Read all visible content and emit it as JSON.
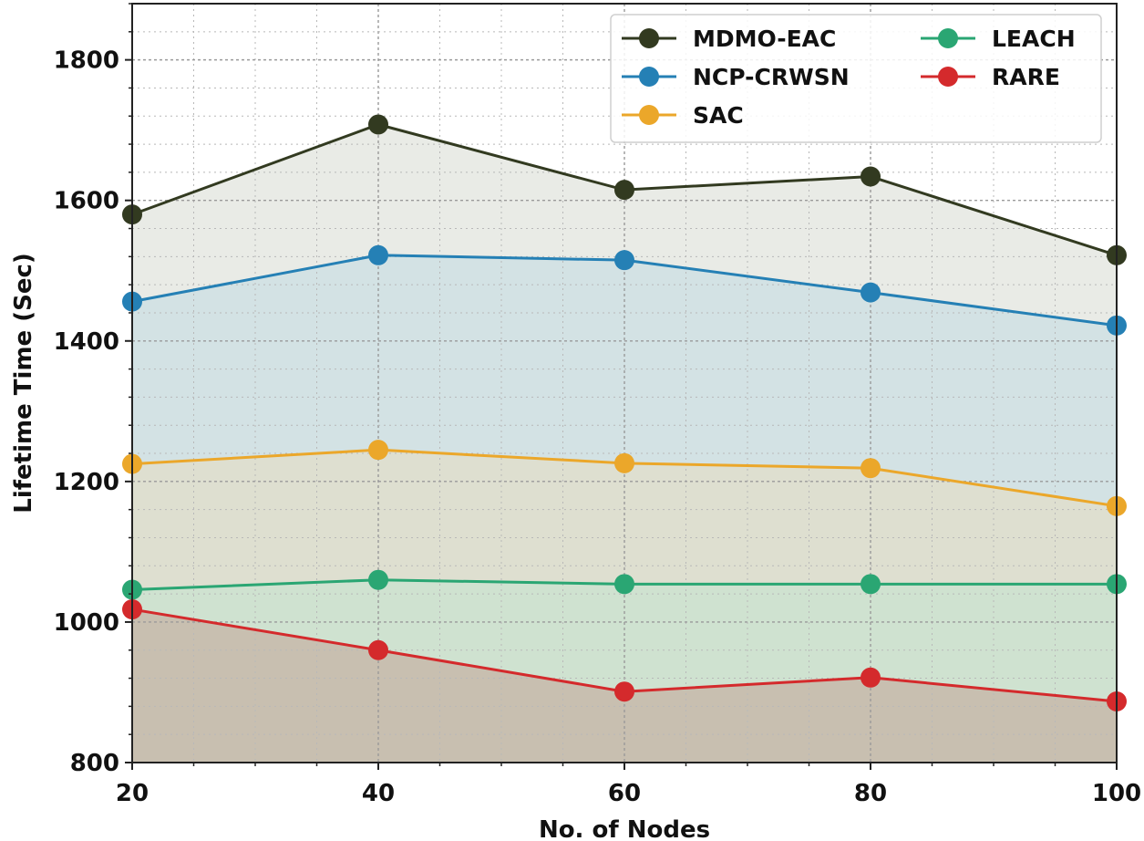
{
  "chart_data": {
    "type": "area",
    "title": "",
    "xlabel": "No. of Nodes",
    "ylabel": "Lifetime Time (Sec)",
    "x": [
      20,
      40,
      60,
      80,
      100
    ],
    "xlim": [
      20,
      100
    ],
    "ylim": [
      800,
      1880
    ],
    "xticks": [
      "20",
      "40",
      "60",
      "80",
      "100"
    ],
    "yticks": [
      "800",
      "1000",
      "1200",
      "1400",
      "1600",
      "1800"
    ],
    "grid": true,
    "legend_position": "top-right",
    "series": [
      {
        "name": "MDMO-EAC",
        "values": [
          1580,
          1708,
          1615,
          1634,
          1522
        ],
        "color": "#323a20",
        "fill": "#e9ebe6"
      },
      {
        "name": "NCP-CRWSN",
        "values": [
          1456,
          1522,
          1515,
          1469,
          1422
        ],
        "color": "#2580b5",
        "fill": "#d3e2e4"
      },
      {
        "name": "SAC",
        "values": [
          1225,
          1245,
          1226,
          1219,
          1165
        ],
        "color": "#eba72a",
        "fill": "#dedfd0"
      },
      {
        "name": "LEACH",
        "values": [
          1046,
          1060,
          1054,
          1054,
          1054
        ],
        "color": "#2aa673",
        "fill": "#cfe2d0"
      },
      {
        "name": "RARE",
        "values": [
          1018,
          960,
          901,
          921,
          887
        ],
        "color": "#d42a2c",
        "fill": "#c8bfb0"
      }
    ]
  }
}
